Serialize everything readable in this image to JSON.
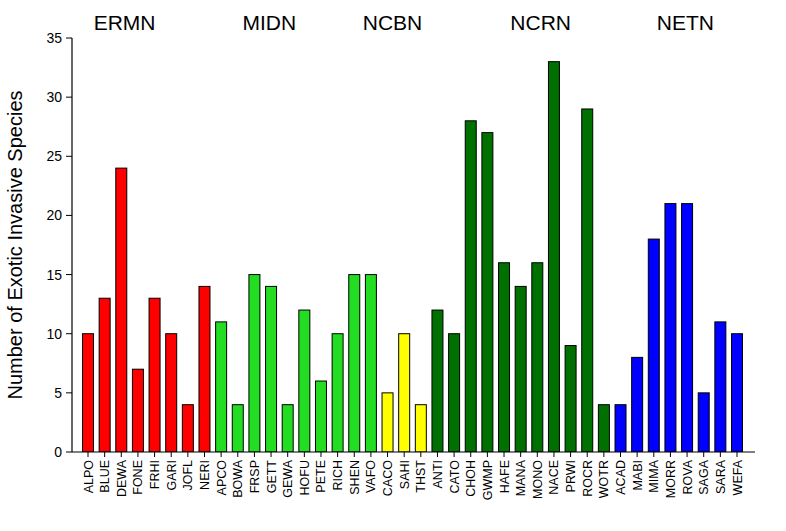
{
  "chart_data": {
    "type": "bar",
    "y_label": "Number of Exotic Invasive Species",
    "annotations": [
      "ERMN",
      "MIDN",
      "NCBN",
      "NCRN",
      "NETN"
    ],
    "categories": [
      "ALPO",
      "BLUE",
      "DEWA",
      "FONE",
      "FRHI",
      "GARI",
      "JOFL",
      "NERI",
      "APCO",
      "BOWA",
      "FRSP",
      "GETT",
      "GEWA",
      "HOFU",
      "PETE",
      "RICH",
      "SHEN",
      "VAFO",
      "CACO",
      "SAHI",
      "THST",
      "ANTI",
      "CATO",
      "CHOH",
      "GWMP",
      "HAFE",
      "MANA",
      "MONO",
      "NACE",
      "PRWI",
      "ROCR",
      "WOTR",
      "ACAD",
      "MABI",
      "MIMA",
      "MORR",
      "ROVA",
      "SAGA",
      "SARA",
      "WEFA"
    ],
    "values": [
      10,
      13,
      24,
      7,
      13,
      10,
      4,
      14,
      11,
      4,
      15,
      14,
      4,
      12,
      6,
      10,
      15,
      15,
      5,
      10,
      4,
      12,
      10,
      28,
      27,
      16,
      14,
      16,
      33,
      9,
      29,
      4,
      4,
      8,
      18,
      21,
      21,
      5,
      11,
      10
    ],
    "colors": [
      "#ff0000",
      "#ff0000",
      "#ff0000",
      "#ff0000",
      "#ff0000",
      "#ff0000",
      "#ff0000",
      "#ff0000",
      "#22dd22",
      "#22dd22",
      "#22dd22",
      "#22dd22",
      "#22dd22",
      "#22dd22",
      "#22dd22",
      "#22dd22",
      "#22dd22",
      "#22dd22",
      "#ffff00",
      "#ffff00",
      "#ffff00",
      "#007000",
      "#007000",
      "#007000",
      "#007000",
      "#007000",
      "#007000",
      "#007000",
      "#007000",
      "#007000",
      "#007000",
      "#007000",
      "#0000ff",
      "#0000ff",
      "#0000ff",
      "#0000ff",
      "#0000ff",
      "#0000ff",
      "#0000ff",
      "#0000ff"
    ],
    "ylim": [
      0,
      35
    ],
    "yticks": [
      0,
      5,
      10,
      15,
      20,
      25,
      30,
      35
    ],
    "grid": false
  }
}
